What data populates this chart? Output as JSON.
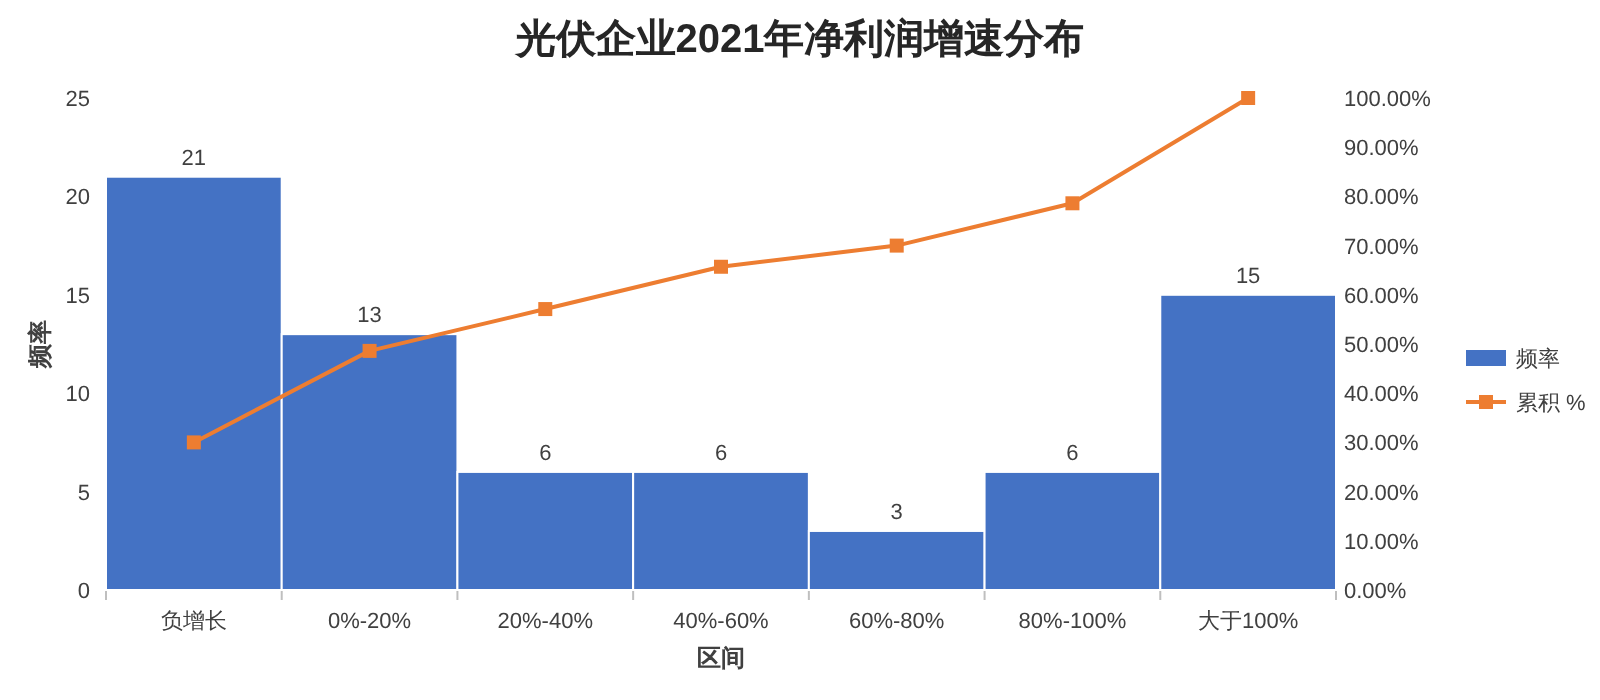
{
  "chart_data": {
    "type": "bar",
    "title": "光伏企业2021年净利润增速分布",
    "xlabel": "区间",
    "ylabel": "频率",
    "legend": "right",
    "categories": [
      "负增长",
      "0%-20%",
      "20%-40%",
      "40%-60%",
      "60%-80%",
      "80%-100%",
      "大于100%"
    ],
    "series": [
      {
        "name": "频率",
        "color": "#4472c4",
        "values": [
          21,
          13,
          6,
          6,
          3,
          6,
          15
        ],
        "value_labels": [
          "21",
          "13",
          "6",
          "6",
          "3",
          "6",
          "15"
        ]
      },
      {
        "name": "累积 %",
        "type": "line",
        "axis": "y2",
        "marker": "square",
        "color": "#ed7d31",
        "values": [
          30,
          48.6,
          57.1,
          65.7,
          70,
          78.6,
          100
        ]
      }
    ],
    "ylim": [
      0,
      25
    ],
    "yticks": [
      0,
      5,
      10,
      15,
      20,
      25
    ],
    "y2lim": [
      0,
      100
    ],
    "y2ticks": [
      {
        "value": 0,
        "label": "0.00%"
      },
      {
        "value": 10,
        "label": "10.00%"
      },
      {
        "value": 20,
        "label": "20.00%"
      },
      {
        "value": 30,
        "label": "30.00%"
      },
      {
        "value": 40,
        "label": "40.00%"
      },
      {
        "value": 50,
        "label": "50.00%"
      },
      {
        "value": 60,
        "label": "60.00%"
      },
      {
        "value": 70,
        "label": "70.00%"
      },
      {
        "value": 80,
        "label": "80.00%"
      },
      {
        "value": 90,
        "label": "90.00%"
      },
      {
        "value": 100,
        "label": "100.00%"
      }
    ]
  }
}
